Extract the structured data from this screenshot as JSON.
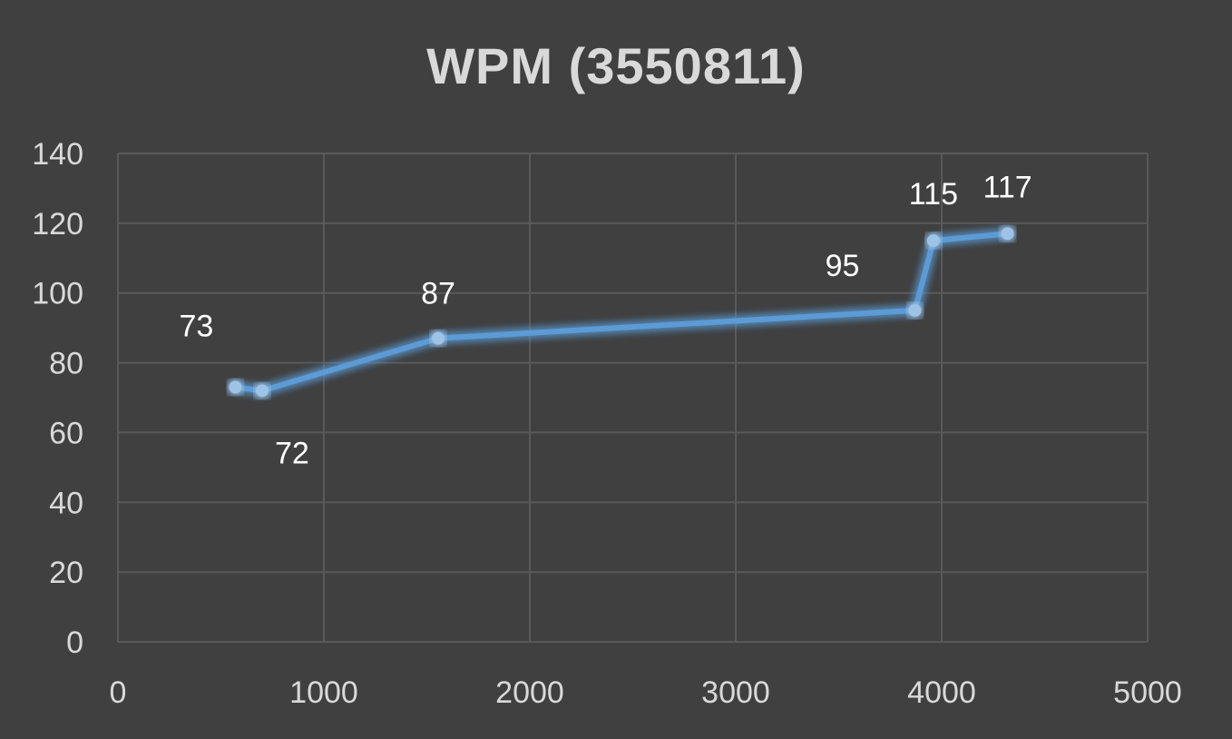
{
  "chart_data": {
    "type": "scatter",
    "title": "WPM (3550811)",
    "xlabel": "",
    "ylabel": "",
    "xlim": [
      0,
      5000
    ],
    "ylim": [
      0,
      140
    ],
    "x_ticks": [
      0,
      1000,
      2000,
      3000,
      4000,
      5000
    ],
    "y_ticks": [
      0,
      20,
      40,
      60,
      80,
      100,
      120,
      140
    ],
    "grid": true,
    "legend": "none",
    "series": [
      {
        "color": "#5b9bd5",
        "points": [
          {
            "x": 570,
            "y": 73,
            "label": "73"
          },
          {
            "x": 700,
            "y": 72,
            "label": "72"
          },
          {
            "x": 1555,
            "y": 87,
            "label": "87"
          },
          {
            "x": 3870,
            "y": 95,
            "label": "95"
          },
          {
            "x": 3960,
            "y": 115,
            "label": "115"
          },
          {
            "x": 4320,
            "y": 117,
            "label": "117"
          }
        ]
      }
    ],
    "colors": {
      "background": "#404040",
      "grid": "#595959",
      "axis_text": "#d9d9d9",
      "data_label": "#ffffff",
      "line": "#5b9bd5",
      "marker": "#9dc3e6"
    }
  }
}
